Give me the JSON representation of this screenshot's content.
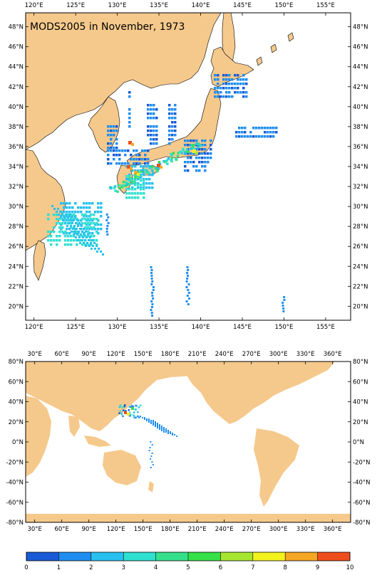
{
  "title": "MODS2005 in November, 1973",
  "colors": {
    "land": "#f5c98c",
    "ocean": "#ffffff",
    "frame": "#000000",
    "scale": [
      "#1a5ad6",
      "#1f8ef0",
      "#28c0ef",
      "#2fe0d0",
      "#36e08a",
      "#36e048",
      "#a6e630",
      "#f2f21c",
      "#f5a623",
      "#ef4e1c"
    ]
  },
  "top_map": {
    "lon_labels": [
      "120°E",
      "125°E",
      "130°E",
      "135°E",
      "140°E",
      "145°E",
      "150°E",
      "155°E"
    ],
    "lat_labels": [
      "48°N",
      "46°N",
      "44°N",
      "42°N",
      "40°N",
      "38°N",
      "36°N",
      "34°N",
      "32°N",
      "30°N",
      "28°N",
      "26°N",
      "24°N",
      "22°N",
      "20°N"
    ],
    "lon_range": [
      119,
      158
    ],
    "lat_range": [
      18.6,
      49.4
    ]
  },
  "bottom_map": {
    "lon_labels": [
      "30°E",
      "60°E",
      "90°E",
      "120°E",
      "150°E",
      "180°E",
      "210°E",
      "240°E",
      "270°E",
      "300°E",
      "330°E",
      "360°E"
    ],
    "lat_labels": [
      "80°N",
      "60°N",
      "40°N",
      "20°N",
      "0°N",
      "-20°N",
      "-40°N",
      "-60°N",
      "-80°N"
    ],
    "lon_range": [
      20,
      380
    ],
    "lat_range": [
      -80,
      80
    ]
  },
  "colorbar": {
    "labels": [
      "0",
      "1",
      "2",
      "3",
      "4",
      "5",
      "6",
      "7",
      "8",
      "9",
      "10"
    ]
  }
}
